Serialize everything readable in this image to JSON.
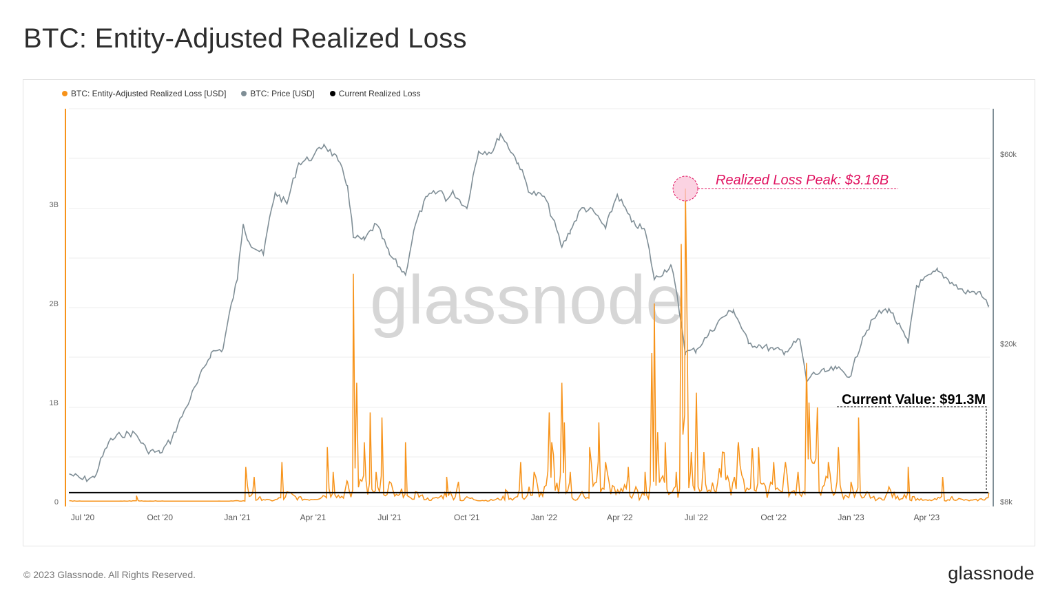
{
  "header": {
    "title": "BTC: Entity-Adjusted Realized Loss"
  },
  "footer": {
    "copyright": "© 2023 Glassnode. All Rights Reserved.",
    "logo": "glassnode"
  },
  "colors": {
    "loss": "#f7931a",
    "price": "#7f8e96",
    "current": "#000000",
    "peak": "#e0115f"
  },
  "chart_data": {
    "type": "line",
    "title": "BTC: Entity-Adjusted Realized Loss",
    "watermark": "glassnode",
    "legend": [
      "BTC: Entity-Adjusted Realized Loss [USD]",
      "BTC: Price [USD]",
      "Current Realized Loss"
    ],
    "legend_position": "top-left",
    "x_ticks": [
      "Jul '20",
      "Oct '20",
      "Jan '21",
      "Apr '21",
      "Jul '21",
      "Oct '21",
      "Jan '22",
      "Apr '22",
      "Jul '22",
      "Oct '22",
      "Jan '23",
      "Apr '23"
    ],
    "x_tick_dates": [
      "2020-07-01",
      "2020-10-01",
      "2021-01-01",
      "2021-04-01",
      "2021-07-01",
      "2021-10-01",
      "2022-01-01",
      "2022-04-01",
      "2022-07-01",
      "2022-10-01",
      "2023-01-01",
      "2023-04-01"
    ],
    "x_range": [
      "2020-06-15",
      "2023-06-14"
    ],
    "y_left": {
      "ticks": [
        "0",
        "1B",
        "2B",
        "3B"
      ],
      "tick_values": [
        0,
        1,
        2,
        3
      ],
      "unit": "USD billions",
      "range": [
        0,
        4
      ]
    },
    "y_right": {
      "ticks": [
        "$8k",
        "$20k",
        "$60k"
      ],
      "tick_values": [
        8000,
        20000,
        60000
      ],
      "scale": "log",
      "range": [
        8000,
        100000
      ]
    },
    "annotations": {
      "peak": "Realized Loss Peak: $3.16B",
      "current": "Current Value: $91.3M"
    },
    "current_realized_loss_billions": 0.0913,
    "series": [
      {
        "name": "BTC: Price [USD]",
        "axis": "right",
        "points": [
          [
            "2020-06-15",
            9400
          ],
          [
            "2020-07-01",
            9100
          ],
          [
            "2020-07-15",
            9200
          ],
          [
            "2020-08-01",
            11300
          ],
          [
            "2020-08-15",
            11800
          ],
          [
            "2020-09-01",
            11900
          ],
          [
            "2020-09-15",
            10800
          ],
          [
            "2020-10-01",
            10600
          ],
          [
            "2020-10-15",
            11500
          ],
          [
            "2020-11-01",
            13800
          ],
          [
            "2020-11-15",
            16000
          ],
          [
            "2020-12-01",
            19000
          ],
          [
            "2020-12-15",
            19400
          ],
          [
            "2021-01-01",
            29000
          ],
          [
            "2021-01-08",
            40000
          ],
          [
            "2021-01-15",
            36000
          ],
          [
            "2021-02-01",
            33500
          ],
          [
            "2021-02-15",
            48000
          ],
          [
            "2021-03-01",
            45000
          ],
          [
            "2021-03-15",
            57000
          ],
          [
            "2021-04-01",
            59000
          ],
          [
            "2021-04-14",
            63500
          ],
          [
            "2021-05-01",
            57800
          ],
          [
            "2021-05-12",
            50000
          ],
          [
            "2021-05-19",
            37000
          ],
          [
            "2021-06-01",
            36500
          ],
          [
            "2021-06-15",
            40000
          ],
          [
            "2021-07-01",
            33500
          ],
          [
            "2021-07-20",
            29800
          ],
          [
            "2021-08-01",
            40000
          ],
          [
            "2021-08-15",
            47000
          ],
          [
            "2021-09-01",
            48500
          ],
          [
            "2021-09-07",
            46000
          ],
          [
            "2021-09-15",
            48000
          ],
          [
            "2021-10-01",
            43800
          ],
          [
            "2021-10-15",
            61000
          ],
          [
            "2021-11-01",
            61000
          ],
          [
            "2021-11-10",
            67500
          ],
          [
            "2021-12-01",
            57000
          ],
          [
            "2021-12-15",
            48000
          ],
          [
            "2022-01-01",
            47000
          ],
          [
            "2022-01-22",
            35000
          ],
          [
            "2022-02-01",
            38500
          ],
          [
            "2022-02-15",
            44000
          ],
          [
            "2022-03-01",
            43000
          ],
          [
            "2022-03-15",
            39000
          ],
          [
            "2022-03-29",
            47500
          ],
          [
            "2022-04-15",
            40500
          ],
          [
            "2022-05-01",
            38500
          ],
          [
            "2022-05-12",
            29000
          ],
          [
            "2022-06-01",
            31500
          ],
          [
            "2022-06-13",
            22500
          ],
          [
            "2022-06-18",
            19000
          ],
          [
            "2022-07-01",
            19300
          ],
          [
            "2022-07-15",
            21000
          ],
          [
            "2022-08-01",
            23300
          ],
          [
            "2022-08-14",
            24300
          ],
          [
            "2022-09-01",
            20000
          ],
          [
            "2022-09-15",
            19800
          ],
          [
            "2022-10-01",
            19300
          ],
          [
            "2022-10-15",
            19100
          ],
          [
            "2022-11-01",
            20500
          ],
          [
            "2022-11-09",
            16000
          ],
          [
            "2022-11-15",
            16700
          ],
          [
            "2022-12-01",
            17000
          ],
          [
            "2022-12-15",
            17300
          ],
          [
            "2023-01-01",
            16600
          ],
          [
            "2023-01-15",
            20800
          ],
          [
            "2023-02-01",
            23700
          ],
          [
            "2023-02-15",
            24500
          ],
          [
            "2023-03-10",
            20000
          ],
          [
            "2023-03-20",
            28000
          ],
          [
            "2023-04-14",
            30500
          ],
          [
            "2023-05-01",
            28500
          ],
          [
            "2023-05-15",
            27000
          ],
          [
            "2023-06-01",
            27000
          ],
          [
            "2023-06-14",
            25000
          ]
        ]
      },
      {
        "name": "BTC: Entity-Adjusted Realized Loss [USD]",
        "axis": "left",
        "unit": "billions",
        "points": [
          [
            "2020-06-15",
            0.01
          ],
          [
            "2020-09-03",
            0.06
          ],
          [
            "2020-09-05",
            0.01
          ],
          [
            "2021-01-11",
            0.35
          ],
          [
            "2021-01-21",
            0.25
          ],
          [
            "2021-01-28",
            0.05
          ],
          [
            "2021-02-23",
            0.4
          ],
          [
            "2021-03-01",
            0.1
          ],
          [
            "2021-04-18",
            0.55
          ],
          [
            "2021-04-25",
            0.3
          ],
          [
            "2021-05-12",
            0.2
          ],
          [
            "2021-05-19",
            2.3
          ],
          [
            "2021-05-23",
            1.2
          ],
          [
            "2021-06-01",
            0.6
          ],
          [
            "2021-06-08",
            0.9
          ],
          [
            "2021-06-15",
            0.3
          ],
          [
            "2021-06-22",
            0.85
          ],
          [
            "2021-07-01",
            0.2
          ],
          [
            "2021-07-20",
            0.6
          ],
          [
            "2021-08-01",
            0.1
          ],
          [
            "2021-09-07",
            0.25
          ],
          [
            "2021-09-21",
            0.2
          ],
          [
            "2021-10-01",
            0.05
          ],
          [
            "2021-11-16",
            0.12
          ],
          [
            "2021-12-04",
            0.4
          ],
          [
            "2021-12-14",
            0.15
          ],
          [
            "2021-12-20",
            0.3
          ],
          [
            "2022-01-07",
            0.9
          ],
          [
            "2022-01-10",
            0.6
          ],
          [
            "2022-01-22",
            1.2
          ],
          [
            "2022-01-25",
            0.8
          ],
          [
            "2022-02-01",
            0.3
          ],
          [
            "2022-02-15",
            0.1
          ],
          [
            "2022-02-24",
            0.55
          ],
          [
            "2022-03-07",
            0.8
          ],
          [
            "2022-03-15",
            0.4
          ],
          [
            "2022-04-11",
            0.35
          ],
          [
            "2022-04-20",
            0.15
          ],
          [
            "2022-05-01",
            0.3
          ],
          [
            "2022-05-09",
            1.5
          ],
          [
            "2022-05-12",
            2.0
          ],
          [
            "2022-05-16",
            0.7
          ],
          [
            "2022-05-25",
            0.6
          ],
          [
            "2022-06-07",
            0.3
          ],
          [
            "2022-06-13",
            2.6
          ],
          [
            "2022-06-18",
            3.16
          ],
          [
            "2022-06-20",
            1.8
          ],
          [
            "2022-06-25",
            0.5
          ],
          [
            "2022-07-01",
            1.1
          ],
          [
            "2022-07-10",
            0.5
          ],
          [
            "2022-08-01",
            0.5
          ],
          [
            "2022-08-20",
            0.6
          ],
          [
            "2022-09-06",
            0.5
          ],
          [
            "2022-09-13",
            0.55
          ],
          [
            "2022-10-01",
            0.4
          ],
          [
            "2022-10-15",
            0.4
          ],
          [
            "2022-10-30",
            0.3
          ],
          [
            "2022-11-09",
            1.4
          ],
          [
            "2022-11-12",
            1.0
          ],
          [
            "2022-11-22",
            0.95
          ],
          [
            "2022-12-05",
            0.4
          ],
          [
            "2022-12-17",
            0.55
          ],
          [
            "2023-01-01",
            0.2
          ],
          [
            "2023-01-10",
            0.85
          ],
          [
            "2023-01-20",
            0.1
          ],
          [
            "2023-02-15",
            0.15
          ],
          [
            "2023-03-10",
            0.35
          ],
          [
            "2023-03-15",
            0.05
          ],
          [
            "2023-04-20",
            0.25
          ],
          [
            "2023-05-01",
            0.05
          ],
          [
            "2023-06-14",
            0.09
          ]
        ]
      }
    ]
  }
}
